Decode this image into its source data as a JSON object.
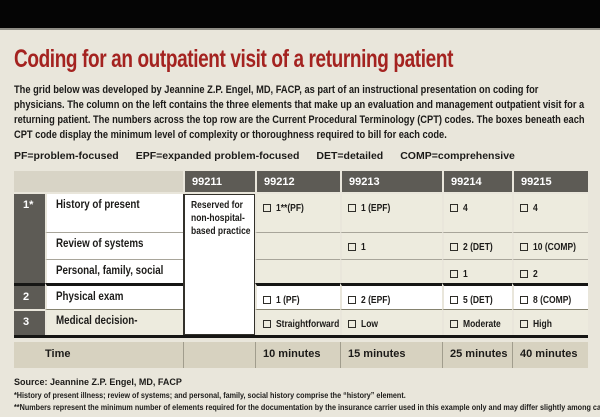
{
  "header": {
    "title": "Coding for an outpatient visit of a returning patient"
  },
  "intro": {
    "paragraph": "The grid below was developed by Jeannine Z.P. Engel, MD, FACP, as part of an instructional presentation on coding for physicians. The column on the left contains the three elements that make up an evaluation and management outpatient visit for a returning patient. The numbers across the top row are the Current Procedural Terminology (CPT) codes. The boxes beneath each CPT code display the minimum level of complexity or thoroughness required to bill for each code.",
    "legend": [
      "PF=problem-focused",
      "EPF=expanded problem-focused",
      "DET=detailed",
      "COMP=comprehensive"
    ]
  },
  "table": {
    "cpt_codes": [
      "99211",
      "99212",
      "99213",
      "99214",
      "99215"
    ],
    "code_99211_note": "Reserved for non-hospital-based practice",
    "rows": [
      {
        "group": "1*",
        "label": "History of present",
        "cells": [
          "1**(PF)",
          "1 (EPF)",
          "4",
          "4"
        ]
      },
      {
        "group": "1*",
        "label": "Review of systems",
        "cells": [
          "",
          "1",
          "2 (DET)",
          "10 (COMP)"
        ]
      },
      {
        "group": "1*",
        "label": "Personal, family, social",
        "cells": [
          "",
          "",
          "1",
          "2"
        ]
      },
      {
        "group": "2",
        "label": "Physical exam",
        "cells": [
          "1 (PF)",
          "2 (EPF)",
          "5 (DET)",
          "8 (COMP)"
        ]
      },
      {
        "group": "3",
        "label": "Medical decision-",
        "cells": [
          "Straightforward",
          "Low",
          "Moderate",
          "High"
        ]
      }
    ],
    "group_numbers": {
      "g1": "1*",
      "g2": "2",
      "g3": "3"
    },
    "time_row": {
      "label": "Time",
      "values": [
        "10 minutes",
        "15 minutes",
        "25 minutes",
        "40 minutes"
      ]
    }
  },
  "footnotes": {
    "source": "Source: Jeannine Z.P. Engel, MD, FACP",
    "note1": "*History of present illness; review of systems; and personal, family, social history comprise the “history” element.",
    "note2": "**Numbers represent the minimum number of elements required for the documentation by the insurance carrier used in this example only and may differ slightly among carriers."
  },
  "colors": {
    "title_red": "#a42320",
    "header_gray": "#5d5b55",
    "page_cream": "#e9e6db",
    "row_beige": "#edebde",
    "time_beige": "#d7d2c0"
  }
}
